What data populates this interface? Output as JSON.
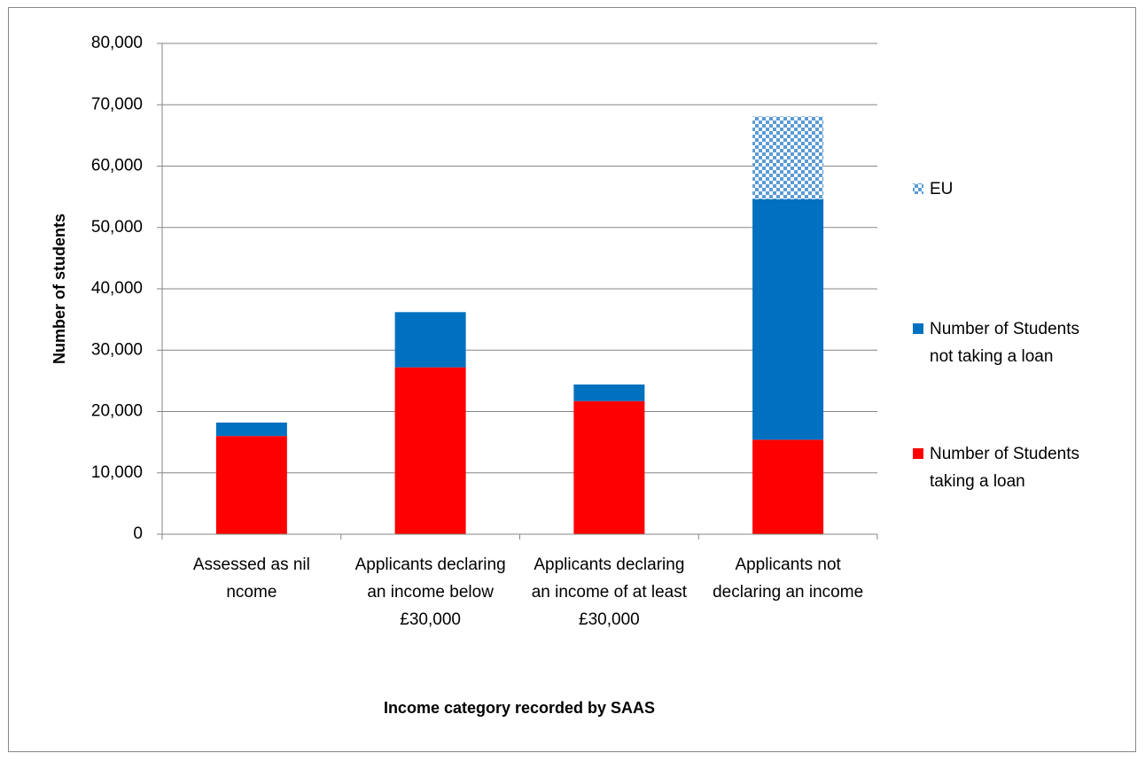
{
  "chart_data": {
    "type": "stacked-bar",
    "x_label": "Income category recorded by SAAS",
    "y_label": "Number of students",
    "categories": [
      "Assessed as nil ncome",
      "Applicants declaring an income below £30,000",
      "Applicants declaring an income of at least £30,000",
      "Applicants not declaring an income"
    ],
    "series": [
      {
        "name": "Number of Students taking a loan",
        "color": "#ff0000",
        "values": [
          16000,
          27200,
          21700,
          15400
        ]
      },
      {
        "name": "Number of Students not taking a loan",
        "color": "#0070c0",
        "values": [
          2200,
          9000,
          2700,
          39200
        ]
      },
      {
        "name": "EU",
        "color": "#5b9bd5",
        "pattern": "crosshatch",
        "values": [
          null,
          null,
          null,
          13500
        ]
      }
    ],
    "ylim": [
      0,
      80000
    ],
    "yticks": [
      0,
      {
        "value": 10000,
        "label": "10,000"
      },
      {
        "value": 20000,
        "label": "20,000"
      },
      {
        "value": 30000,
        "label": "30,000"
      },
      {
        "value": 40000,
        "label": "40,000"
      },
      {
        "value": 50000,
        "label": "50,000"
      },
      {
        "value": 60000,
        "label": "60,000"
      },
      {
        "value": 70000,
        "label": "70,000"
      },
      {
        "value": 80000,
        "label": "80,000"
      }
    ],
    "grid": true,
    "legend": "right"
  }
}
